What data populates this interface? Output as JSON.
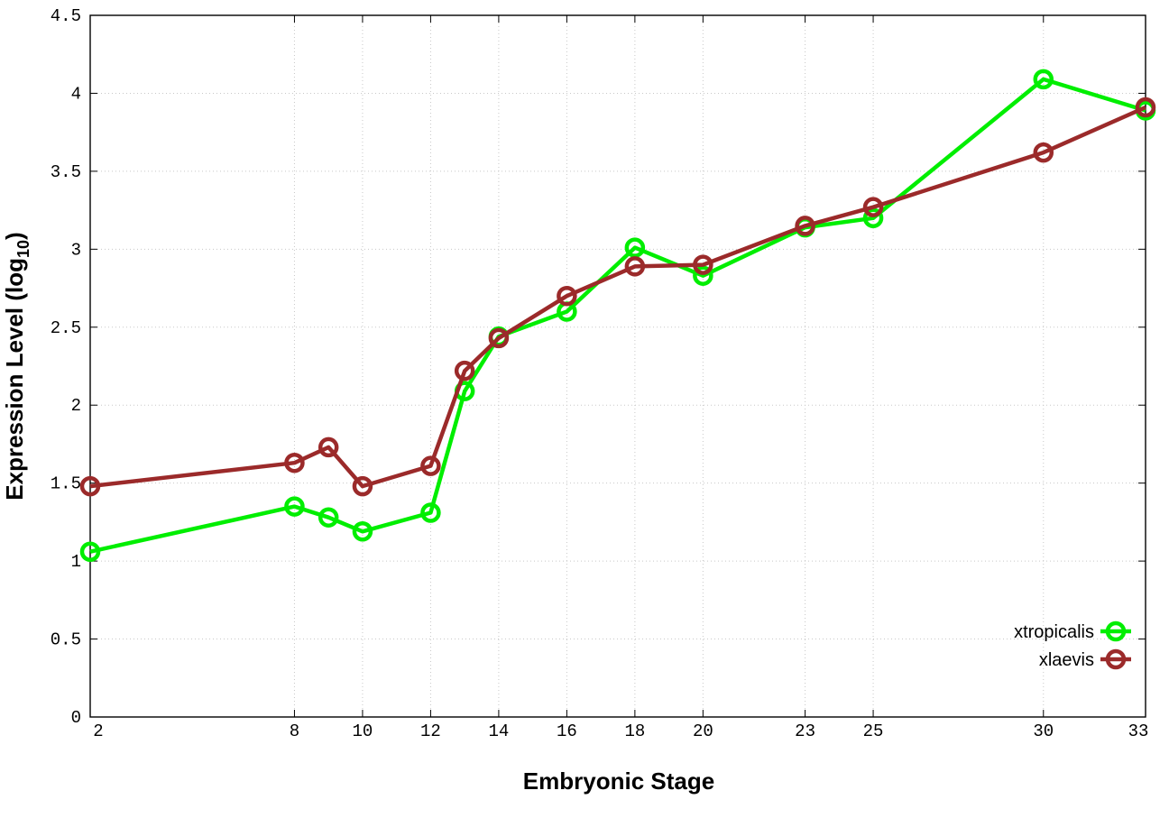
{
  "chart_data": {
    "type": "line",
    "title": "",
    "xlabel": "Embryonic Stage",
    "ylabel": "Expression Level (log",
    "ylabel_subscript": "10",
    "ylabel_close": ")",
    "xlim": [
      2,
      33
    ],
    "ylim": [
      0,
      4.5
    ],
    "x_ticks": [
      2,
      8,
      10,
      12,
      14,
      16,
      18,
      20,
      23,
      25,
      30,
      33
    ],
    "y_ticks": [
      0,
      0.5,
      1,
      1.5,
      2,
      2.5,
      3,
      3.5,
      4,
      4.5
    ],
    "y_tick_labels": [
      "0",
      "0.5",
      "1",
      "1.5",
      "2",
      "2.5",
      "3",
      "3.5",
      "4",
      "4.5"
    ],
    "grid": true,
    "legend_position": "bottom-right",
    "series": [
      {
        "name": "xtropicalis",
        "color": "#00ee00",
        "marker": "circle",
        "x": [
          2,
          8,
          9,
          10,
          12,
          13,
          14,
          16,
          18,
          20,
          23,
          25,
          30,
          33
        ],
        "y": [
          1.06,
          1.35,
          1.28,
          1.19,
          1.31,
          2.09,
          2.44,
          2.6,
          3.01,
          2.83,
          3.14,
          3.2,
          4.09,
          3.89
        ]
      },
      {
        "name": "xlaevis",
        "color": "#9b2a2a",
        "marker": "circle",
        "x": [
          2,
          8,
          9,
          10,
          12,
          13,
          14,
          16,
          18,
          20,
          23,
          25,
          30,
          33
        ],
        "y": [
          1.48,
          1.63,
          1.73,
          1.48,
          1.61,
          2.22,
          2.43,
          2.7,
          2.89,
          2.9,
          3.15,
          3.27,
          3.62,
          3.91
        ]
      }
    ]
  }
}
